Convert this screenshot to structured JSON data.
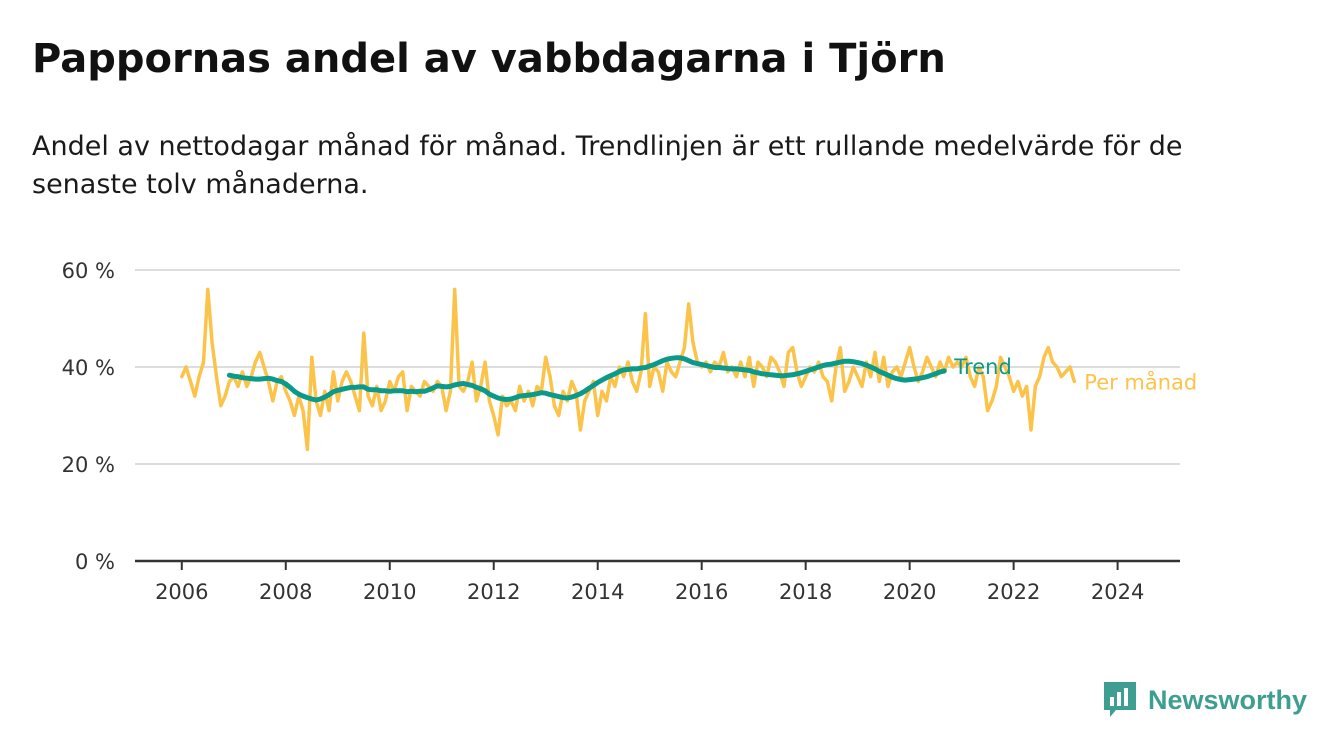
{
  "title": "Pappornas andel av vabbdagarna i Tjörn",
  "subtitle": "Andel av nettodagar månad för månad. Trendlinjen är ett rullande medelvärde för de senaste tolv månaderna.",
  "brand": "Newsworthy",
  "colors": {
    "trend": "#0b9a8a",
    "monthly": "#fcc34a",
    "grid": "#dddddd",
    "axis": "#333333",
    "brand": "#3e9e92"
  },
  "chart_data": {
    "type": "line",
    "x_start": "2006-01",
    "xlabel": "",
    "ylabel": "",
    "ylim": [
      0,
      60
    ],
    "yticks": [
      0,
      20,
      40,
      60
    ],
    "ytick_labels": [
      "0 %",
      "20 %",
      "40 %",
      "60 %"
    ],
    "xlim": [
      2005.1,
      2025.2
    ],
    "xticks": [
      2006,
      2008,
      2010,
      2012,
      2014,
      2016,
      2018,
      2020,
      2022,
      2024
    ],
    "xtick_labels": [
      "2006",
      "2008",
      "2010",
      "2012",
      "2014",
      "2016",
      "2018",
      "2020",
      "2022",
      "2024"
    ],
    "grid": true,
    "legend": "end-of-line labels",
    "series": [
      {
        "name": "Per månad",
        "color": "#fcc34a",
        "start": "2006-01",
        "values": [
          38,
          40,
          37,
          34,
          38,
          41,
          56,
          45,
          38,
          32,
          34,
          37,
          38,
          36,
          39,
          36,
          38,
          41,
          43,
          40,
          37,
          33,
          37,
          38,
          35,
          33,
          30,
          34,
          31,
          23,
          42,
          33,
          30,
          35,
          31,
          39,
          33,
          37,
          39,
          37,
          34,
          31,
          47,
          34,
          32,
          36,
          31,
          33,
          37,
          35,
          38,
          39,
          31,
          36,
          35,
          34,
          37,
          36,
          35,
          37,
          36,
          31,
          35,
          56,
          36,
          35,
          37,
          41,
          33,
          36,
          41,
          33,
          30,
          26,
          34,
          32,
          33,
          31,
          36,
          33,
          35,
          32,
          36,
          35,
          42,
          38,
          32,
          30,
          35,
          33,
          37,
          35,
          27,
          33,
          35,
          37,
          30,
          35,
          33,
          38,
          36,
          40,
          38,
          41,
          37,
          35,
          39,
          51,
          36,
          40,
          39,
          35,
          41,
          39,
          38,
          41,
          44,
          53,
          45,
          41,
          40,
          41,
          39,
          41,
          40,
          43,
          39,
          40,
          38,
          41,
          38,
          42,
          36,
          41,
          40,
          38,
          42,
          41,
          39,
          36,
          43,
          44,
          39,
          36,
          38,
          40,
          39,
          41,
          38,
          37,
          33,
          40,
          44,
          35,
          37,
          40,
          38,
          36,
          41,
          38,
          43,
          37,
          42,
          36,
          39,
          40,
          38,
          41,
          44,
          40,
          37,
          39,
          42,
          40,
          38,
          41,
          39,
          42,
          40,
          41,
          40,
          42,
          38,
          36,
          40,
          38,
          31,
          33,
          36,
          42,
          40,
          38,
          35,
          37,
          34,
          36,
          27,
          36,
          38,
          42,
          44,
          41,
          40,
          38,
          39,
          40,
          37
        ]
      },
      {
        "name": "Trend",
        "color": "#0b9a8a",
        "start": "2006-12",
        "values": [
          38.3,
          38.1,
          38.0,
          37.8,
          37.7,
          37.6,
          37.5,
          37.5,
          37.6,
          37.7,
          37.5,
          37.2,
          37.0,
          36.5,
          35.8,
          35.0,
          34.4,
          34.0,
          33.7,
          33.4,
          33.2,
          33.4,
          33.8,
          34.3,
          34.9,
          35.2,
          35.4,
          35.6,
          35.8,
          35.8,
          35.9,
          35.9,
          35.4,
          35.3,
          35.3,
          35.1,
          35.1,
          35.0,
          35.1,
          35.1,
          35.1,
          34.9,
          35.0,
          34.9,
          35.0,
          35.0,
          35.3,
          35.7,
          36.1,
          36.0,
          35.9,
          36.0,
          36.3,
          36.5,
          36.6,
          36.4,
          36.2,
          35.8,
          35.5,
          35.1,
          34.4,
          34.0,
          33.6,
          33.4,
          33.3,
          33.4,
          33.7,
          34.0,
          34.1,
          34.2,
          34.3,
          34.5,
          34.7,
          34.6,
          34.3,
          34.1,
          33.9,
          33.7,
          33.6,
          33.8,
          34.1,
          34.5,
          35.0,
          35.6,
          36.2,
          36.8,
          37.3,
          37.8,
          38.2,
          38.6,
          39.1,
          39.4,
          39.5,
          39.6,
          39.6,
          39.8,
          39.9,
          40.2,
          40.5,
          40.9,
          41.3,
          41.6,
          41.8,
          41.9,
          41.9,
          41.7,
          41.3,
          40.9,
          40.7,
          40.5,
          40.3,
          40.1,
          39.9,
          39.9,
          39.8,
          39.7,
          39.6,
          39.6,
          39.5,
          39.4,
          39.3,
          39.0,
          38.8,
          38.6,
          38.5,
          38.4,
          38.3,
          38.2,
          38.2,
          38.3,
          38.4,
          38.6,
          38.8,
          39.1,
          39.4,
          39.7,
          40.0,
          40.3,
          40.5,
          40.6,
          40.8,
          41.0,
          41.2,
          41.2,
          41.1,
          40.9,
          40.7,
          40.4,
          40.0,
          39.6,
          39.1,
          38.7,
          38.3,
          37.9,
          37.6,
          37.4,
          37.3,
          37.4,
          37.5,
          37.6,
          37.8,
          38.0,
          38.3,
          38.6,
          39.0,
          39.2
        ]
      }
    ]
  }
}
